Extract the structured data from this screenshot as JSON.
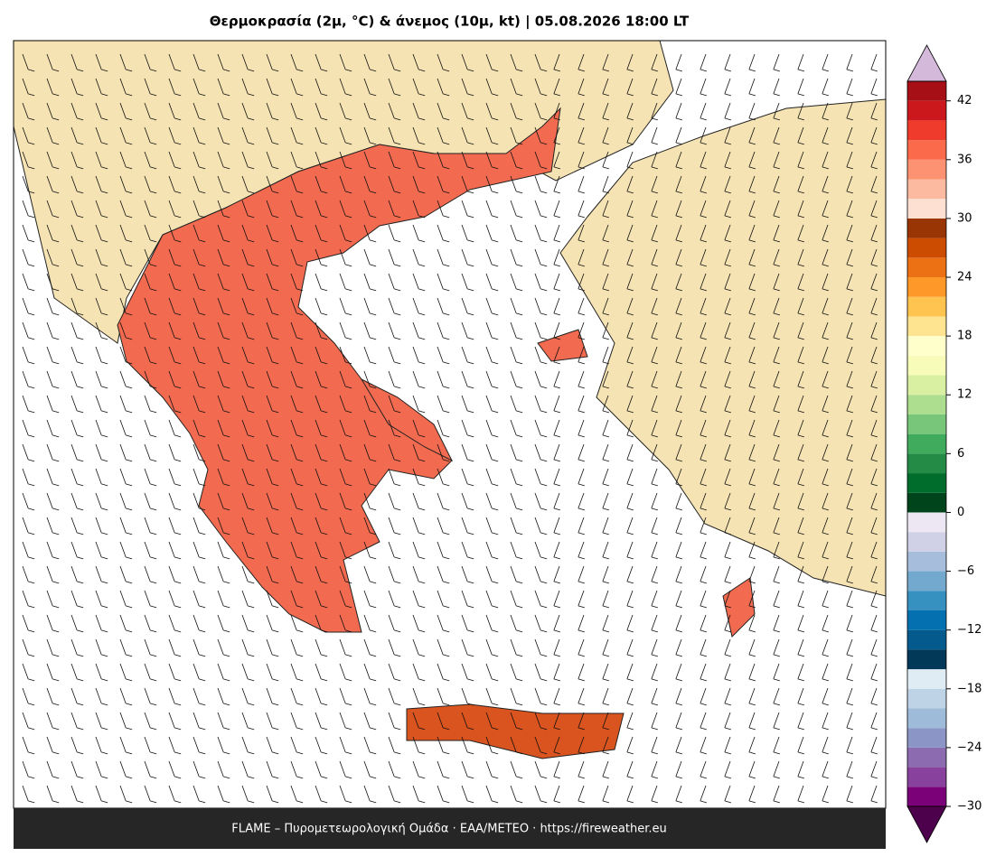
{
  "title": "Θερμοκρασία (2μ, °C) & άνεμος (10μ, kt)  |  05.08.2026 18:00 LT",
  "footer": "FLAME – Πυρομετεωρολογική Ομάδα · ΕΑΑ/METEO · https://fireweather.eu",
  "colorbar": {
    "ylim": [
      -30,
      44
    ],
    "levels": [
      -30,
      -28,
      -26,
      -24,
      -22,
      -20,
      -18,
      -16,
      -14,
      -12,
      -10,
      -8,
      -6,
      -4,
      -2,
      0,
      2,
      4,
      6,
      8,
      10,
      12,
      14,
      16,
      18,
      20,
      22,
      24,
      26,
      28,
      30,
      32,
      34,
      36,
      38,
      40,
      42,
      44
    ],
    "colors": [
      "#7a0177",
      "#88419d",
      "#8c6bb1",
      "#8c96c6",
      "#9ebcda",
      "#bfd3e6",
      "#e0ecf4",
      "#023858",
      "#045a8d",
      "#0570b0",
      "#3690c0",
      "#74a9cf",
      "#a6bddb",
      "#d0d1e6",
      "#ece7f2",
      "#00441b",
      "#006d2c",
      "#238b45",
      "#41ab5d",
      "#78c679",
      "#addd8e",
      "#d9f0a3",
      "#f7fcb9",
      "#ffffcc",
      "#fee391",
      "#fec44f",
      "#fe9929",
      "#ec7014",
      "#cc4c02",
      "#993404",
      "#fee0d2",
      "#fcbba1",
      "#fc9272",
      "#fb6a4a",
      "#ef3b2c",
      "#cb181d",
      "#a50f15",
      "#df65b0"
    ],
    "under_color": "#4d004b",
    "over_color": "#d4b9da",
    "yticks": [
      42,
      36,
      30,
      24,
      18,
      12,
      6,
      0,
      {
        "value": -6,
        "label": "−6"
      },
      {
        "value": -12,
        "label": "−12"
      },
      {
        "value": -18,
        "label": "−18"
      },
      {
        "value": -24,
        "label": "−24"
      },
      {
        "value": -30,
        "label": "−30"
      }
    ]
  }
}
